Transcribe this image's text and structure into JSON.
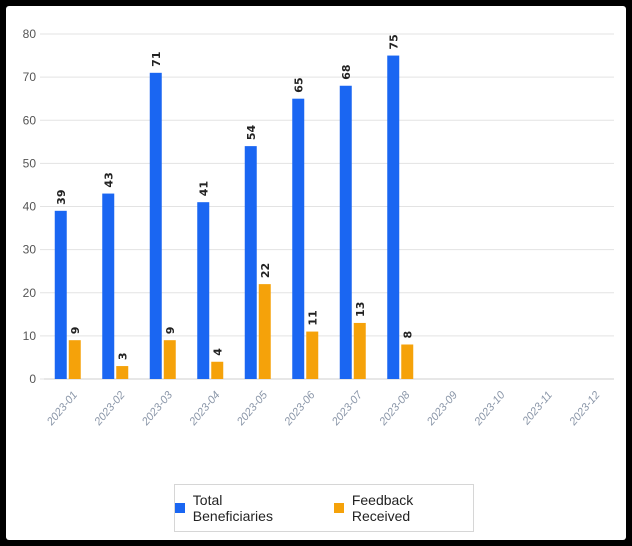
{
  "chart_data": {
    "type": "bar",
    "categories": [
      "2023-01",
      "2023-02",
      "2023-03",
      "2023-04",
      "2023-05",
      "2023-06",
      "2023-07",
      "2023-08",
      "2023-09",
      "2023-10",
      "2023-11",
      "2023-12"
    ],
    "series": [
      {
        "name": "Total Beneficiaries",
        "color": "#1a66f2",
        "values": [
          39,
          43,
          71,
          41,
          54,
          65,
          68,
          75,
          null,
          null,
          null,
          null
        ]
      },
      {
        "name": "Feedback Received",
        "color": "#f5a20a",
        "values": [
          9,
          3,
          9,
          4,
          22,
          11,
          13,
          8,
          null,
          null,
          null,
          null
        ]
      }
    ],
    "ylim": [
      0,
      80
    ],
    "yticks": [
      0,
      10,
      20,
      30,
      40,
      50,
      60,
      70,
      80
    ],
    "grid": true,
    "legend_position": "bottom",
    "data_labels": true
  }
}
